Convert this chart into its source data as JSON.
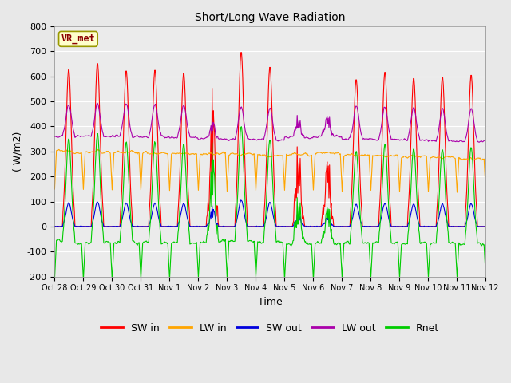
{
  "title": "Short/Long Wave Radiation",
  "xlabel": "Time",
  "ylabel": "( W/m2)",
  "ylim": [
    -200,
    800
  ],
  "yticks": [
    -200,
    -100,
    0,
    100,
    200,
    300,
    400,
    500,
    600,
    700,
    800
  ],
  "xtick_labels": [
    "Oct 28",
    "Oct 29",
    "Oct 30",
    "Oct 31",
    "Nov 1",
    "Nov 2",
    "Nov 3",
    "Nov 4",
    "Nov 5",
    "Nov 6",
    "Nov 7",
    "Nov 8",
    "Nov 9",
    "Nov 10",
    "Nov 11",
    "Nov 12"
  ],
  "station_label": "VR_met",
  "fig_bg_color": "#e8e8e8",
  "plot_bg_color": "#ebebeb",
  "series": {
    "SW_in": {
      "color": "#ff0000",
      "label": "SW in"
    },
    "LW_in": {
      "color": "#ffa500",
      "label": "LW in"
    },
    "SW_out": {
      "color": "#0000dd",
      "label": "SW out"
    },
    "LW_out": {
      "color": "#aa00aa",
      "label": "LW out"
    },
    "Rnet": {
      "color": "#00cc00",
      "label": "Rnet"
    }
  }
}
